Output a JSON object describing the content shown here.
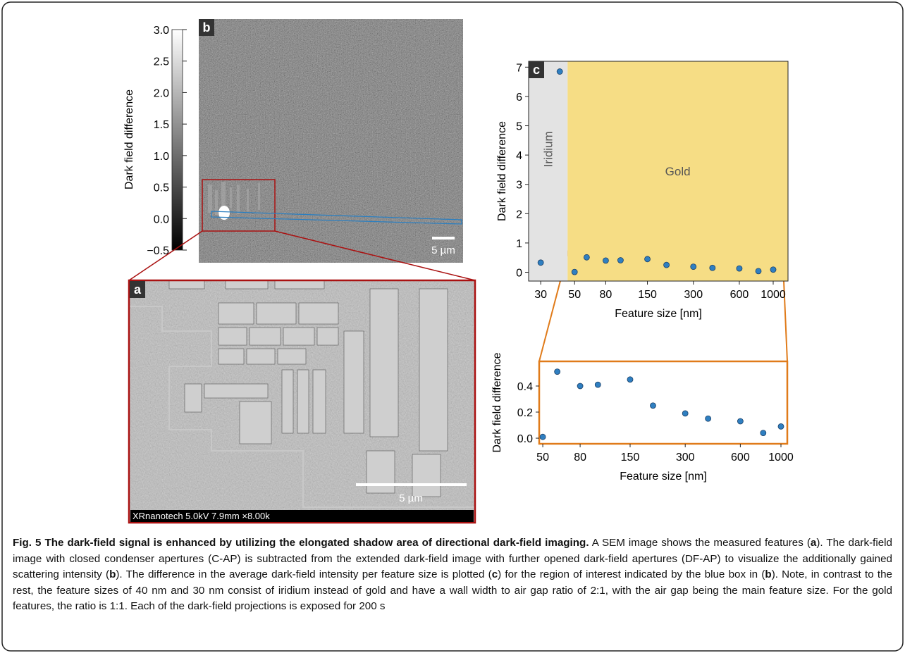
{
  "colorbar": {
    "label": "Dark field difference",
    "lim": [
      -0.5,
      3.0
    ],
    "ticks": [
      {
        "value": 3.0,
        "label": "3.0"
      },
      {
        "value": 2.5,
        "label": "2.5"
      },
      {
        "value": 2.0,
        "label": "2.0"
      },
      {
        "value": 1.5,
        "label": "1.5"
      },
      {
        "value": 1.0,
        "label": "1.0"
      },
      {
        "value": 0.5,
        "label": "0.5"
      },
      {
        "value": 0.0,
        "label": "0.0"
      },
      {
        "value": -0.5,
        "label": "−0.5"
      }
    ]
  },
  "panel_b": {
    "letter": "b",
    "scale_bar": "5 µm"
  },
  "panel_a": {
    "letter": "a",
    "scale_bar": "5 µm",
    "footer": "XRnanotech 5.0kV 7.9mm ×8.00k"
  },
  "chart_data": [
    {
      "type": "scatter",
      "panel_label": "c",
      "xlabel": "Feature size [nm]",
      "ylabel": "Dark field difference",
      "log_x": true,
      "color": "#2f7fc1",
      "x": [
        30,
        40,
        50,
        60,
        80,
        100,
        150,
        200,
        300,
        400,
        600,
        800,
        1000
      ],
      "values": [
        0.33,
        6.85,
        0.01,
        0.51,
        0.4,
        0.41,
        0.45,
        0.25,
        0.19,
        0.15,
        0.13,
        0.04,
        0.09
      ],
      "xlim": [
        25,
        1250
      ],
      "ylim": [
        -0.3,
        7.2
      ],
      "xticks": [
        30,
        50,
        80,
        150,
        300,
        600,
        1000
      ],
      "yticks": [
        0,
        1,
        2,
        3,
        4,
        5,
        6,
        7
      ],
      "regions": [
        {
          "label": "Iridium",
          "xlim": [
            25,
            45
          ],
          "color": "#e3e3e3"
        },
        {
          "label": "Gold",
          "xlim": [
            45,
            1250
          ],
          "color": "#f6dd85"
        }
      ]
    },
    {
      "type": "scatter",
      "xlabel": "Feature size [nm]",
      "ylabel": "Dark field difference",
      "log_x": true,
      "color": "#2f7fc1",
      "x": [
        50,
        60,
        80,
        100,
        150,
        200,
        300,
        400,
        600,
        800,
        1000
      ],
      "values": [
        0.01,
        0.51,
        0.4,
        0.41,
        0.45,
        0.25,
        0.19,
        0.15,
        0.13,
        0.04,
        0.09
      ],
      "xlim": [
        47.8,
        1083
      ],
      "ylim": [
        -0.043,
        0.589
      ],
      "xticks": [
        50,
        80,
        150,
        300,
        600,
        1000
      ],
      "yticks": [
        {
          "value": 0.0,
          "label": "0.0"
        },
        {
          "value": 0.2,
          "label": "0.2"
        },
        {
          "value": 0.4,
          "label": "0.4"
        }
      ]
    }
  ],
  "caption": {
    "title": "Fig. 5 The dark-field signal is enhanced by utilizing the elongated shadow area of directional dark-field imaging.",
    "segments": [
      {
        "text": " A SEM image shows the measured features (",
        "bold": false
      },
      {
        "text": "a",
        "bold": true
      },
      {
        "text": "). The dark-field image with closed condenser apertures (C-AP) is subtracted from the extended dark-field image with further opened dark-field apertures (DF-AP) to visualize the additionally gained scattering intensity (",
        "bold": false
      },
      {
        "text": "b",
        "bold": true
      },
      {
        "text": "). The difference in the average dark-field intensity per feature size is plotted (",
        "bold": false
      },
      {
        "text": "c",
        "bold": true
      },
      {
        "text": ") for the region of interest indicated by the blue box in (",
        "bold": false
      },
      {
        "text": "b",
        "bold": true
      },
      {
        "text": "). Note, in contrast to the rest, the feature sizes of 40 nm and 30 nm consist of iridium instead of gold and have a wall width to air gap ratio of 2:1, with the air gap being the main feature size. For the gold features, the ratio is 1:1. Each of the dark-field projections is exposed for 200 s",
        "bold": false
      }
    ]
  }
}
